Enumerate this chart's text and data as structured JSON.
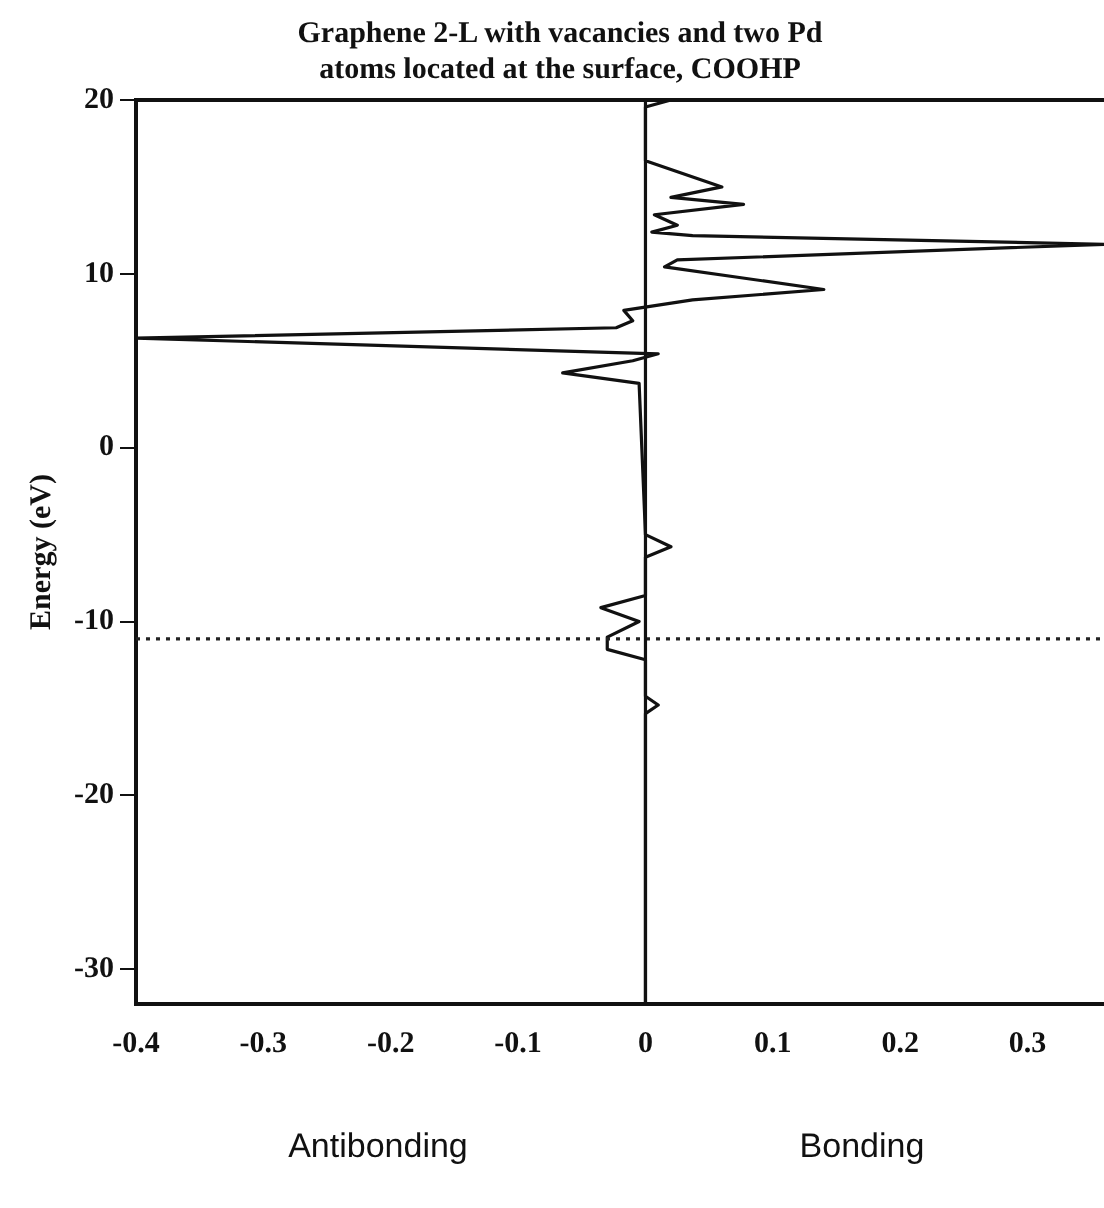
{
  "chart_data": {
    "type": "line",
    "title": "Graphene 2-L with vacancies and two Pd\natoms located at the surface, COOHP",
    "ylabel": "Energy (eV)",
    "annotations": [
      "Antibonding",
      "Bonding"
    ],
    "series": [
      {
        "color": "#111111",
        "x": [
          0.02,
          0,
          0,
          0.06,
          0.02,
          0.077,
          0.007,
          0.025,
          0.005,
          0.037,
          0.36,
          0.025,
          0.015,
          0.14,
          0.037,
          0.01,
          -0.017,
          -0.01,
          -0.023,
          -0.4,
          0.01,
          -0.01,
          -0.065,
          -0.005,
          0,
          0.02,
          0,
          0,
          -0.035,
          -0.005,
          -0.03,
          -0.03,
          0,
          0,
          0.01,
          0,
          0
        ],
        "values": [
          20,
          19.6,
          16.5,
          15.0,
          14.4,
          14.0,
          13.4,
          12.8,
          12.4,
          12.2,
          11.7,
          10.8,
          10.4,
          9.1,
          8.5,
          8.2,
          7.9,
          7.3,
          6.9,
          6.3,
          5.4,
          5.0,
          4.3,
          3.7,
          -5.0,
          -5.7,
          -6.3,
          -8.5,
          -9.2,
          -10.0,
          -10.9,
          -11.6,
          -12.2,
          -14.3,
          -14.8,
          -15.3,
          -32
        ]
      }
    ],
    "xlim": [
      -0.4,
      0.36
    ],
    "xticks": [
      -0.4,
      -0.3,
      -0.2,
      -0.1,
      0,
      0.1,
      0.2,
      0.3
    ],
    "ylim": [
      -32,
      20
    ],
    "yticks": [
      -30,
      -20,
      -10,
      0,
      10,
      20
    ],
    "ref_lines": [
      {
        "axis": "y",
        "value": -11,
        "line_style": "dotted",
        "color": "#222222"
      },
      {
        "axis": "x",
        "value": 0,
        "line_style": "solid",
        "color": "#111111"
      }
    ],
    "grid": false,
    "legend": false,
    "marker": "none",
    "line_style": "solid"
  }
}
